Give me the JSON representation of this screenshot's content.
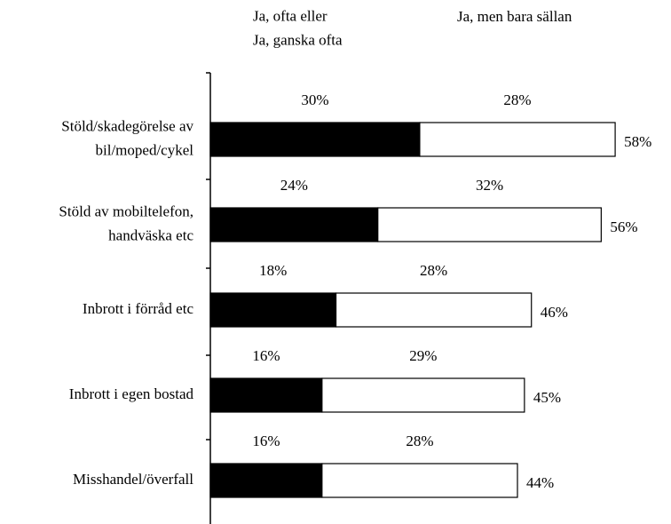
{
  "chart_data": {
    "type": "bar",
    "orientation": "horizontal",
    "stacked": true,
    "categories": [
      "Stöld/skadegörelse av\nbil/moped/cykel",
      "Stöld av mobiltelefon,\nhandväska etc",
      "Inbrott i förråd etc",
      "Inbrott i egen bostad",
      "Misshandel/överfall"
    ],
    "series": [
      {
        "name": "Ja, ofta eller\nJa, ganska ofta",
        "color": "#000000",
        "values": [
          30,
          24,
          18,
          16,
          16
        ],
        "value_labels": [
          "30%",
          "24%",
          "18%",
          "16%",
          "16%"
        ]
      },
      {
        "name": "Ja, men bara sällan",
        "color": "#ffffff",
        "values": [
          28,
          32,
          28,
          29,
          28
        ],
        "value_labels": [
          "28%",
          "32%",
          "28%",
          "29%",
          "28%"
        ]
      }
    ],
    "totals": [
      58,
      56,
      46,
      45,
      44
    ],
    "total_labels": [
      "58%",
      "56%",
      "46%",
      "45%",
      "44%"
    ],
    "xlim": [
      0,
      66
    ]
  }
}
